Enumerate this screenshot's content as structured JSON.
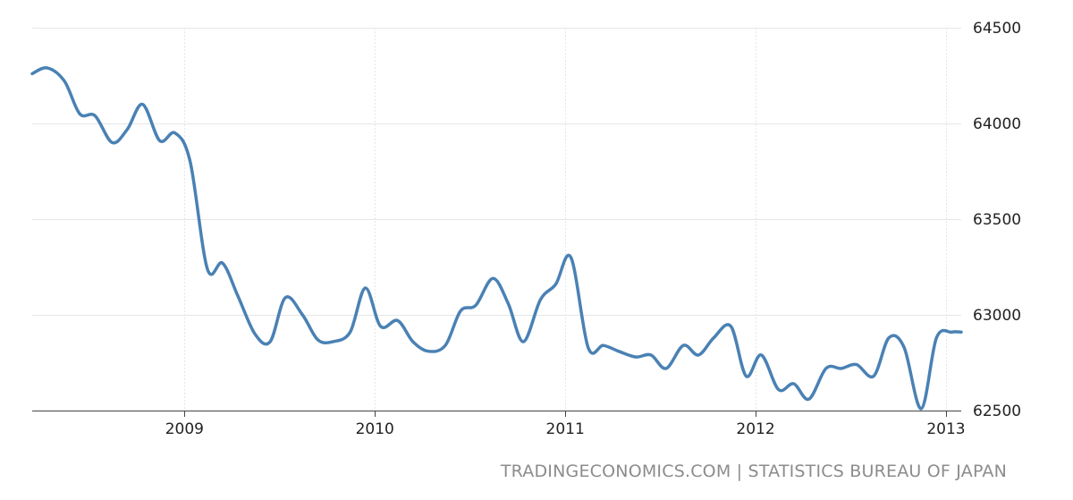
{
  "source": "TRADINGECONOMICS.COM | STATISTICS BUREAU OF JAPAN",
  "chart_data": {
    "type": "line",
    "title": "",
    "xlabel": "",
    "ylabel": "",
    "xlim": [
      2008.2,
      2013.08
    ],
    "ylim": [
      62500,
      64500
    ],
    "x_ticks": [
      2009,
      2010,
      2011,
      2012,
      2013
    ],
    "y_ticks": [
      62500,
      63000,
      63500,
      64000,
      64500
    ],
    "grid": true,
    "legend": "none",
    "colors": {
      "line": "#4a81b4",
      "grid": "#e6e6e6",
      "text": "#222222",
      "source": "#8c8c8c"
    },
    "series": [
      {
        "x": [
          2008.2,
          2008.28,
          2008.37,
          2008.45,
          2008.53,
          2008.62,
          2008.7,
          2008.78,
          2008.87,
          2008.95,
          2009.03,
          2009.12,
          2009.2,
          2009.28,
          2009.37,
          2009.45,
          2009.53,
          2009.62,
          2009.7,
          2009.78,
          2009.87,
          2009.95,
          2010.03,
          2010.12,
          2010.2,
          2010.28,
          2010.37,
          2010.45,
          2010.53,
          2010.62,
          2010.7,
          2010.78,
          2010.87,
          2010.95,
          2011.03,
          2011.12,
          2011.2,
          2011.28,
          2011.37,
          2011.45,
          2011.53,
          2011.62,
          2011.7,
          2011.78,
          2011.87,
          2011.95,
          2012.03,
          2012.12,
          2012.2,
          2012.28,
          2012.37,
          2012.45,
          2012.53,
          2012.62,
          2012.7,
          2012.78,
          2012.87,
          2012.95,
          2013.03,
          2013.08
        ],
        "values": [
          64260,
          64290,
          64220,
          64050,
          64040,
          63900,
          63970,
          64100,
          63910,
          63950,
          63800,
          63240,
          63270,
          63100,
          62900,
          62860,
          63090,
          63000,
          62870,
          62860,
          62910,
          63140,
          62940,
          62970,
          62860,
          62810,
          62840,
          63020,
          63050,
          63190,
          63060,
          62860,
          63080,
          63160,
          63300,
          62830,
          62840,
          62810,
          62780,
          62790,
          62720,
          62840,
          62790,
          62880,
          62940,
          62680,
          62790,
          62610,
          62640,
          62560,
          62720,
          62720,
          62740,
          62680,
          62880,
          62830,
          62510,
          62880,
          62910,
          62910
        ]
      }
    ]
  }
}
